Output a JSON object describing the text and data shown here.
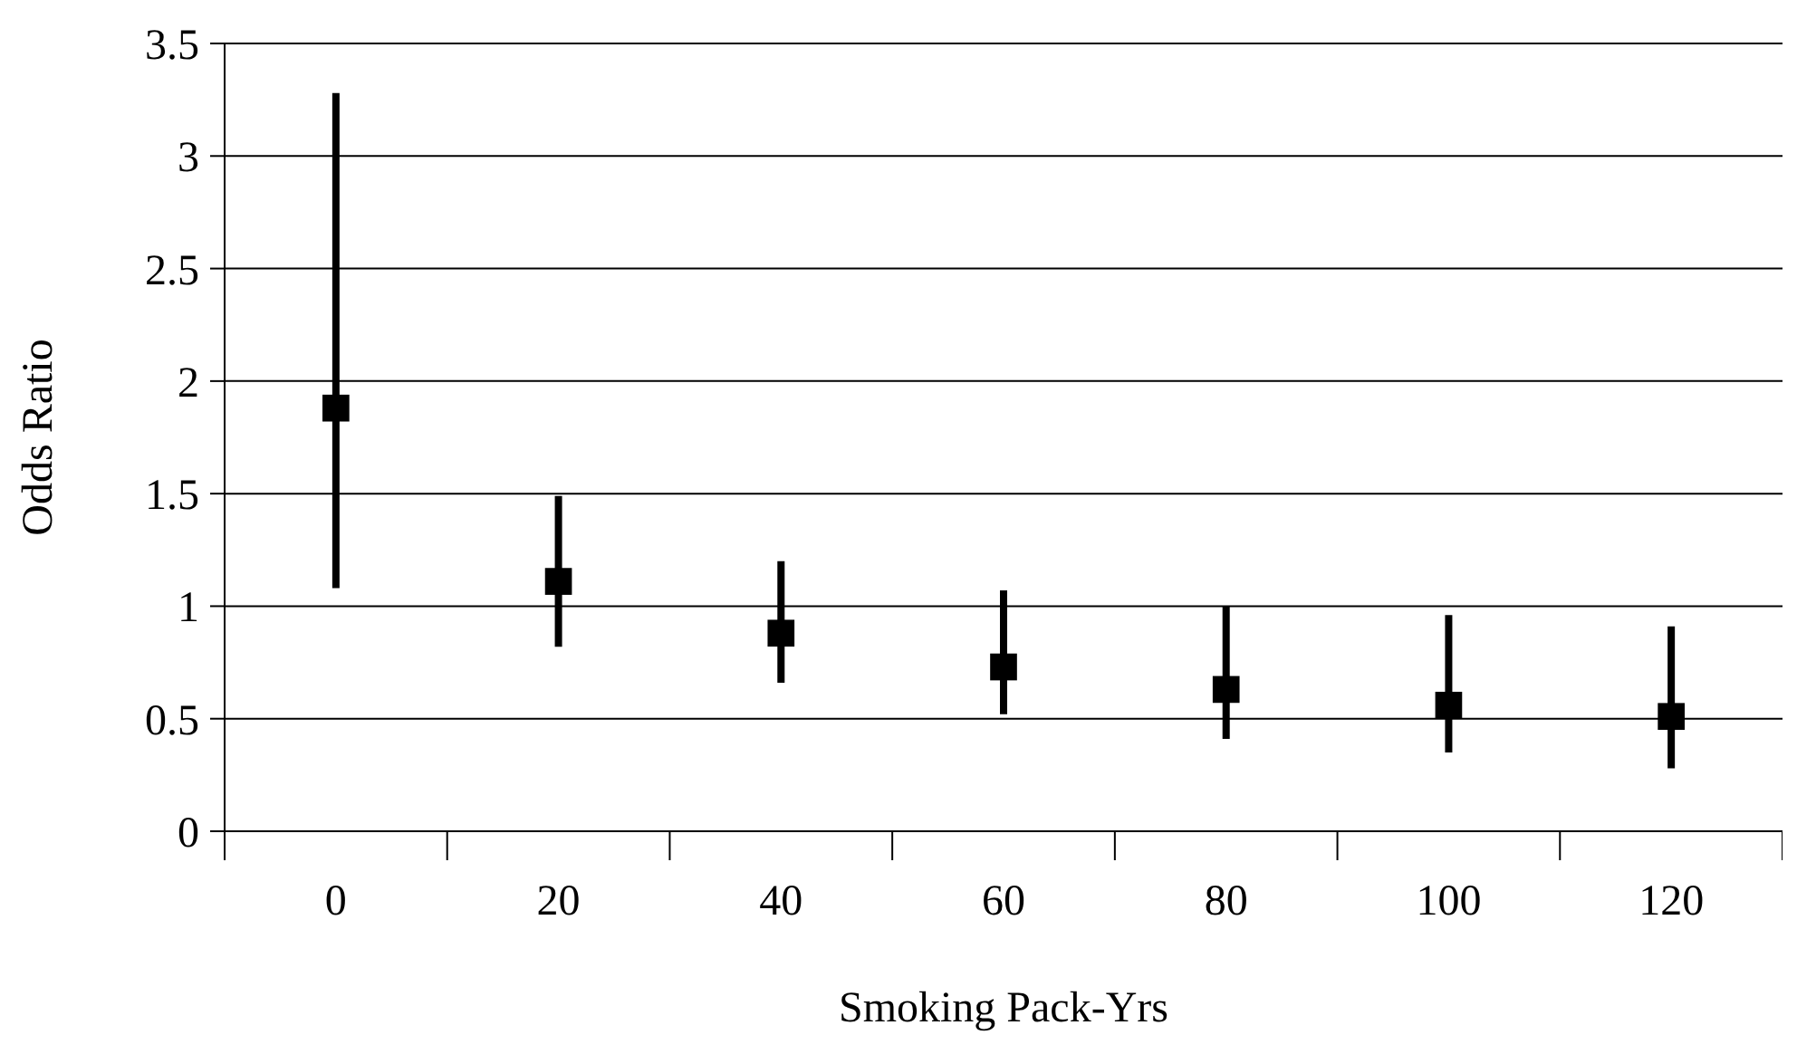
{
  "chart_data": {
    "type": "scatter",
    "xlabel": "Smoking Pack-Yrs",
    "ylabel": "Odds Ratio",
    "categories": [
      "0",
      "20",
      "40",
      "60",
      "80",
      "100",
      "120"
    ],
    "series": [
      {
        "color": "#000000",
        "values": [
          1.88,
          1.11,
          0.88,
          0.73,
          0.63,
          0.56,
          0.51
        ],
        "errors": [
          [
            1.08,
            3.28
          ],
          [
            0.82,
            1.49
          ],
          [
            0.66,
            1.2
          ],
          [
            0.52,
            1.07
          ],
          [
            0.41,
            1.0
          ],
          [
            0.35,
            0.96
          ],
          [
            0.28,
            0.91
          ]
        ]
      }
    ],
    "marker": "square",
    "ylim": [
      0,
      3.5
    ],
    "yticks": [
      0,
      0.5,
      1,
      1.5,
      2,
      2.5,
      3,
      3.5
    ],
    "grid": "y",
    "legend": false
  }
}
